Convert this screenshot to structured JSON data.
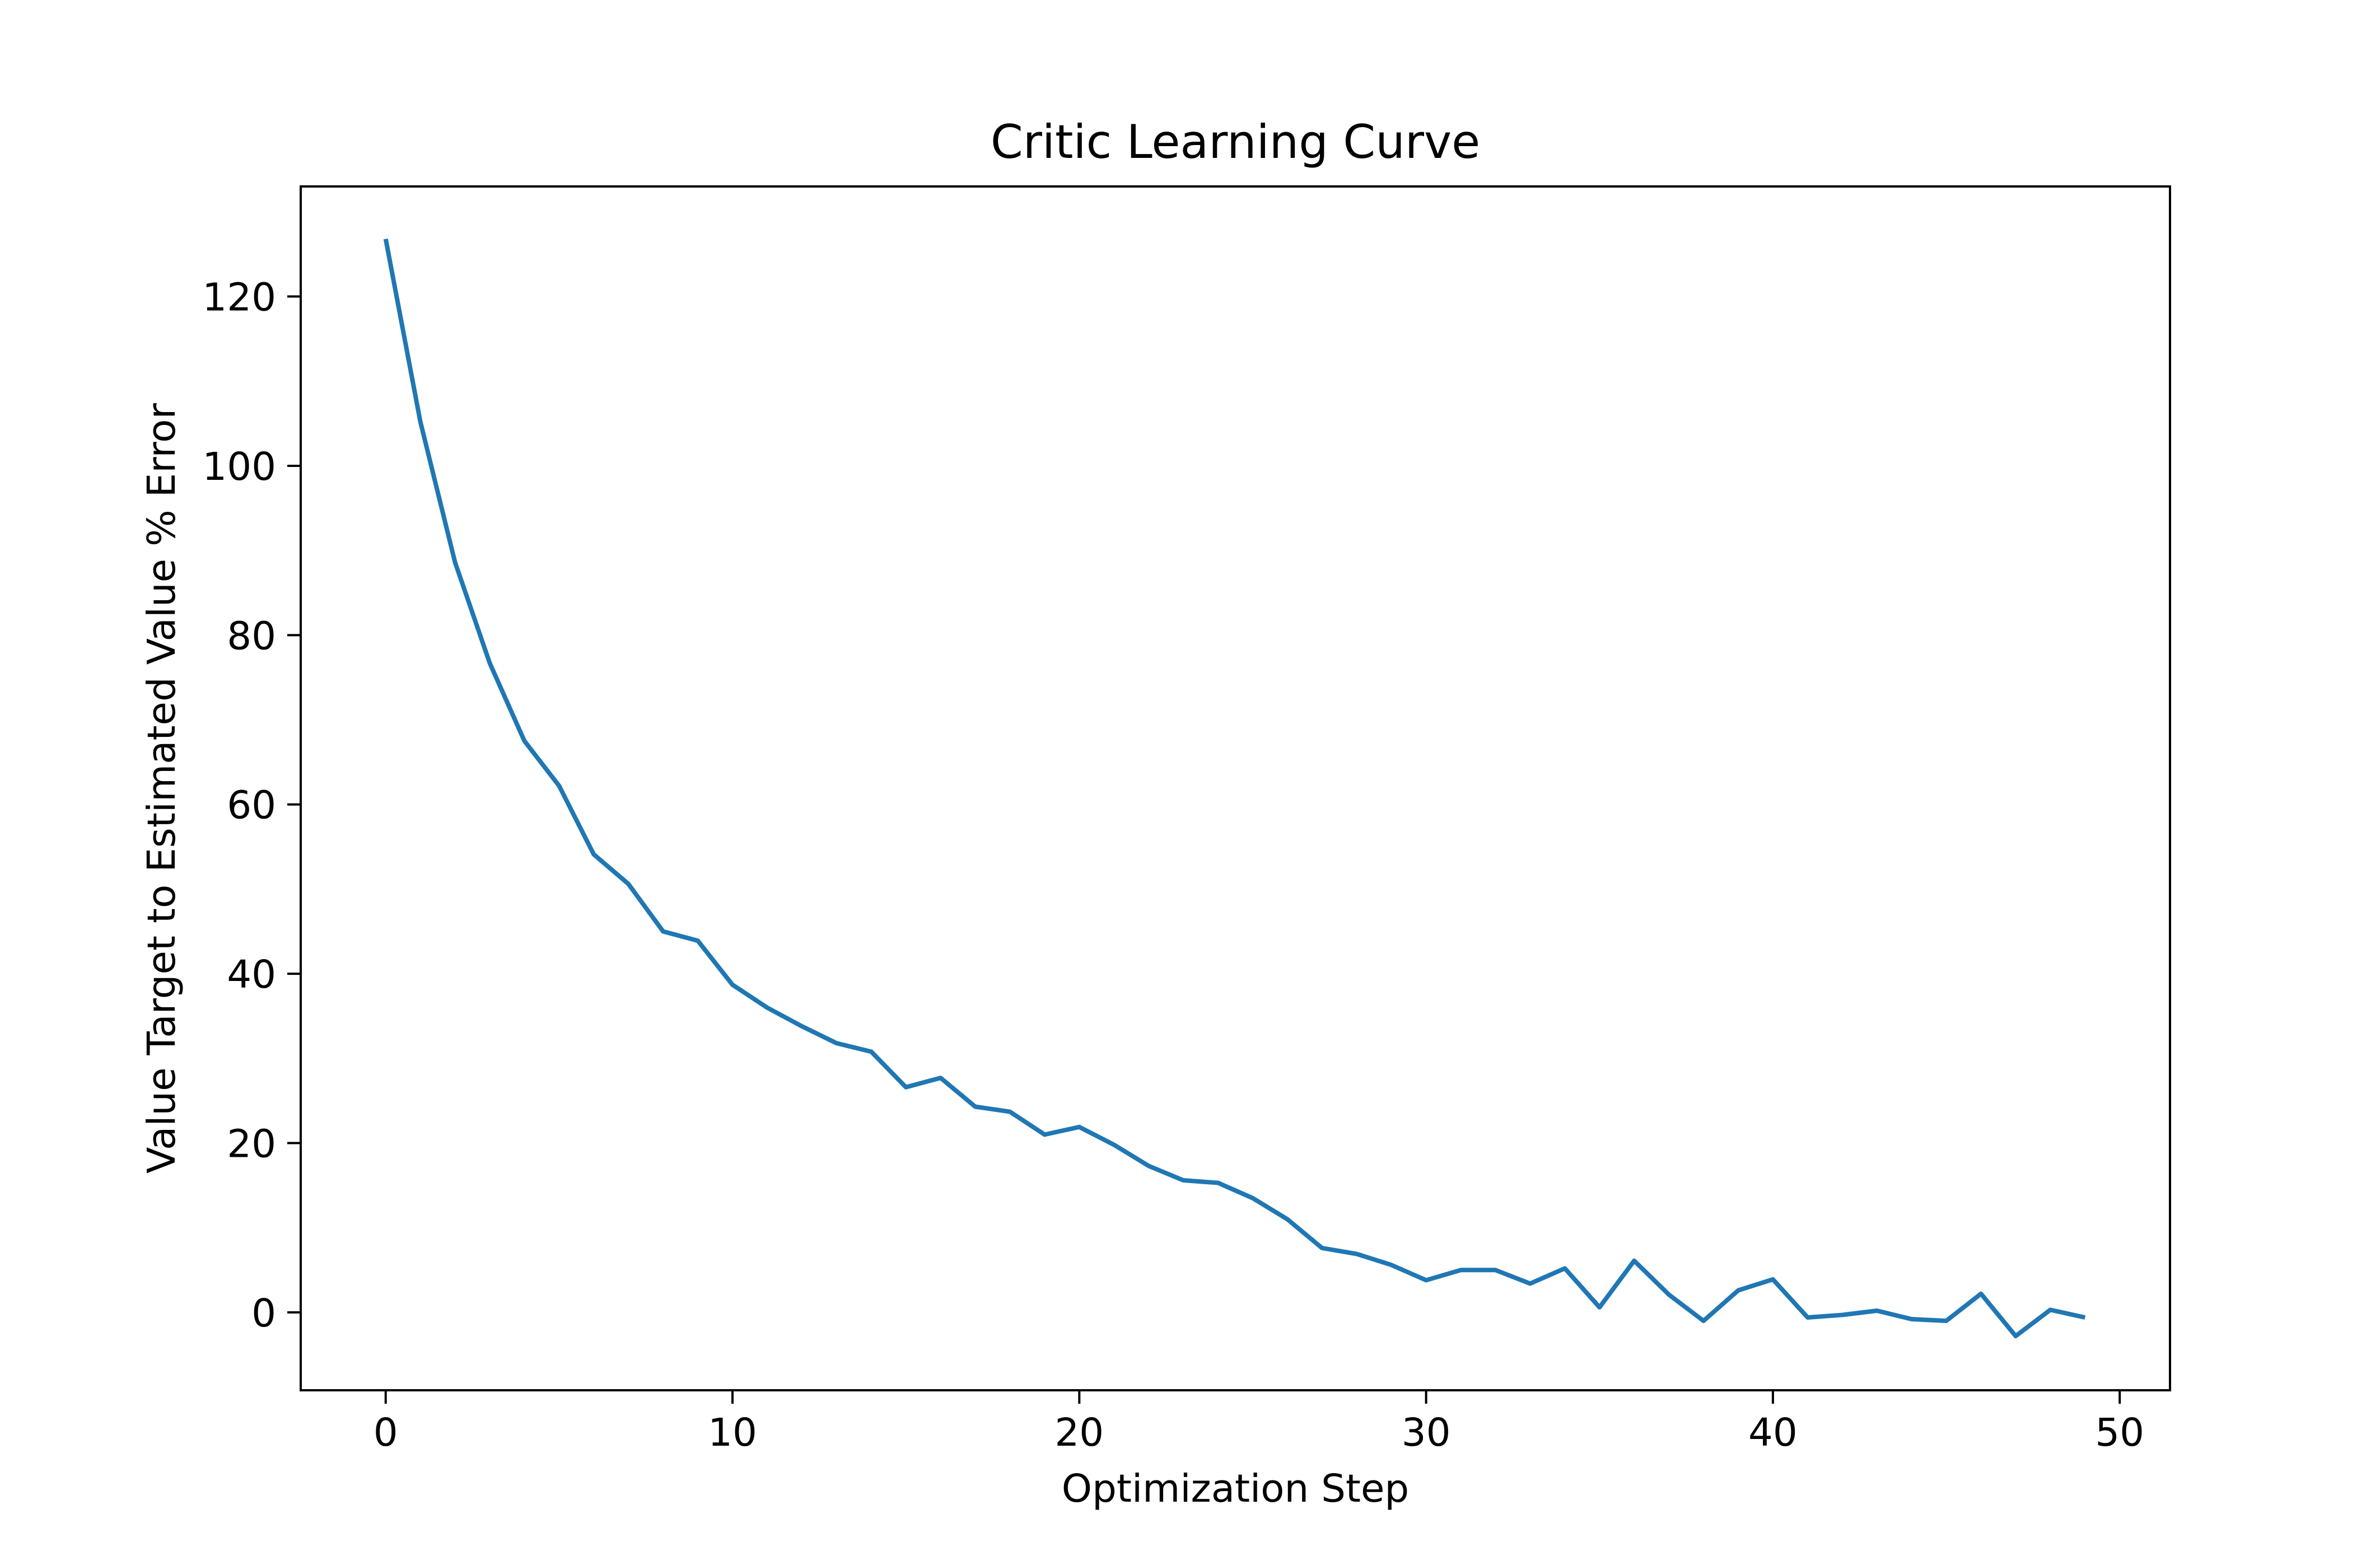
{
  "chart_data": {
    "type": "line",
    "title": "Critic Learning Curve",
    "xlabel": "Optimization Step",
    "ylabel": "Value Target to Estimated Value % Error",
    "xlim": [
      -2.45,
      51.45
    ],
    "ylim": [
      -9.2,
      133.0
    ],
    "xticks": [
      0,
      10,
      20,
      30,
      40,
      50
    ],
    "yticks": [
      0,
      20,
      40,
      60,
      80,
      100,
      120
    ],
    "grid": false,
    "line_color": "#1f77b4",
    "series": [
      {
        "x": [
          0,
          1,
          2,
          3,
          4,
          5,
          6,
          7,
          8,
          9,
          10,
          11,
          12,
          13,
          14,
          15,
          16,
          17,
          18,
          19,
          20,
          21,
          22,
          23,
          24,
          25,
          26,
          27,
          28,
          29,
          30,
          31,
          32,
          33,
          34,
          35,
          36,
          37,
          38,
          39,
          40,
          41,
          42,
          43,
          44,
          45,
          46,
          47,
          48,
          49
        ],
        "values": [
          126.8,
          105.2,
          88.6,
          76.7,
          67.5,
          62.2,
          54.1,
          50.6,
          45.0,
          43.9,
          38.7,
          36.0,
          33.8,
          31.8,
          30.8,
          26.6,
          27.7,
          24.3,
          23.7,
          21.0,
          21.9,
          19.8,
          17.3,
          15.6,
          15.3,
          13.5,
          11.0,
          7.6,
          6.9,
          5.6,
          3.8,
          5.0,
          5.0,
          3.4,
          5.2,
          0.6,
          6.1,
          2.1,
          -1.0,
          2.6,
          3.9,
          -0.6,
          -0.3,
          0.2,
          -0.8,
          -1.0,
          2.2,
          -2.8,
          0.3,
          -0.6
        ]
      }
    ]
  }
}
